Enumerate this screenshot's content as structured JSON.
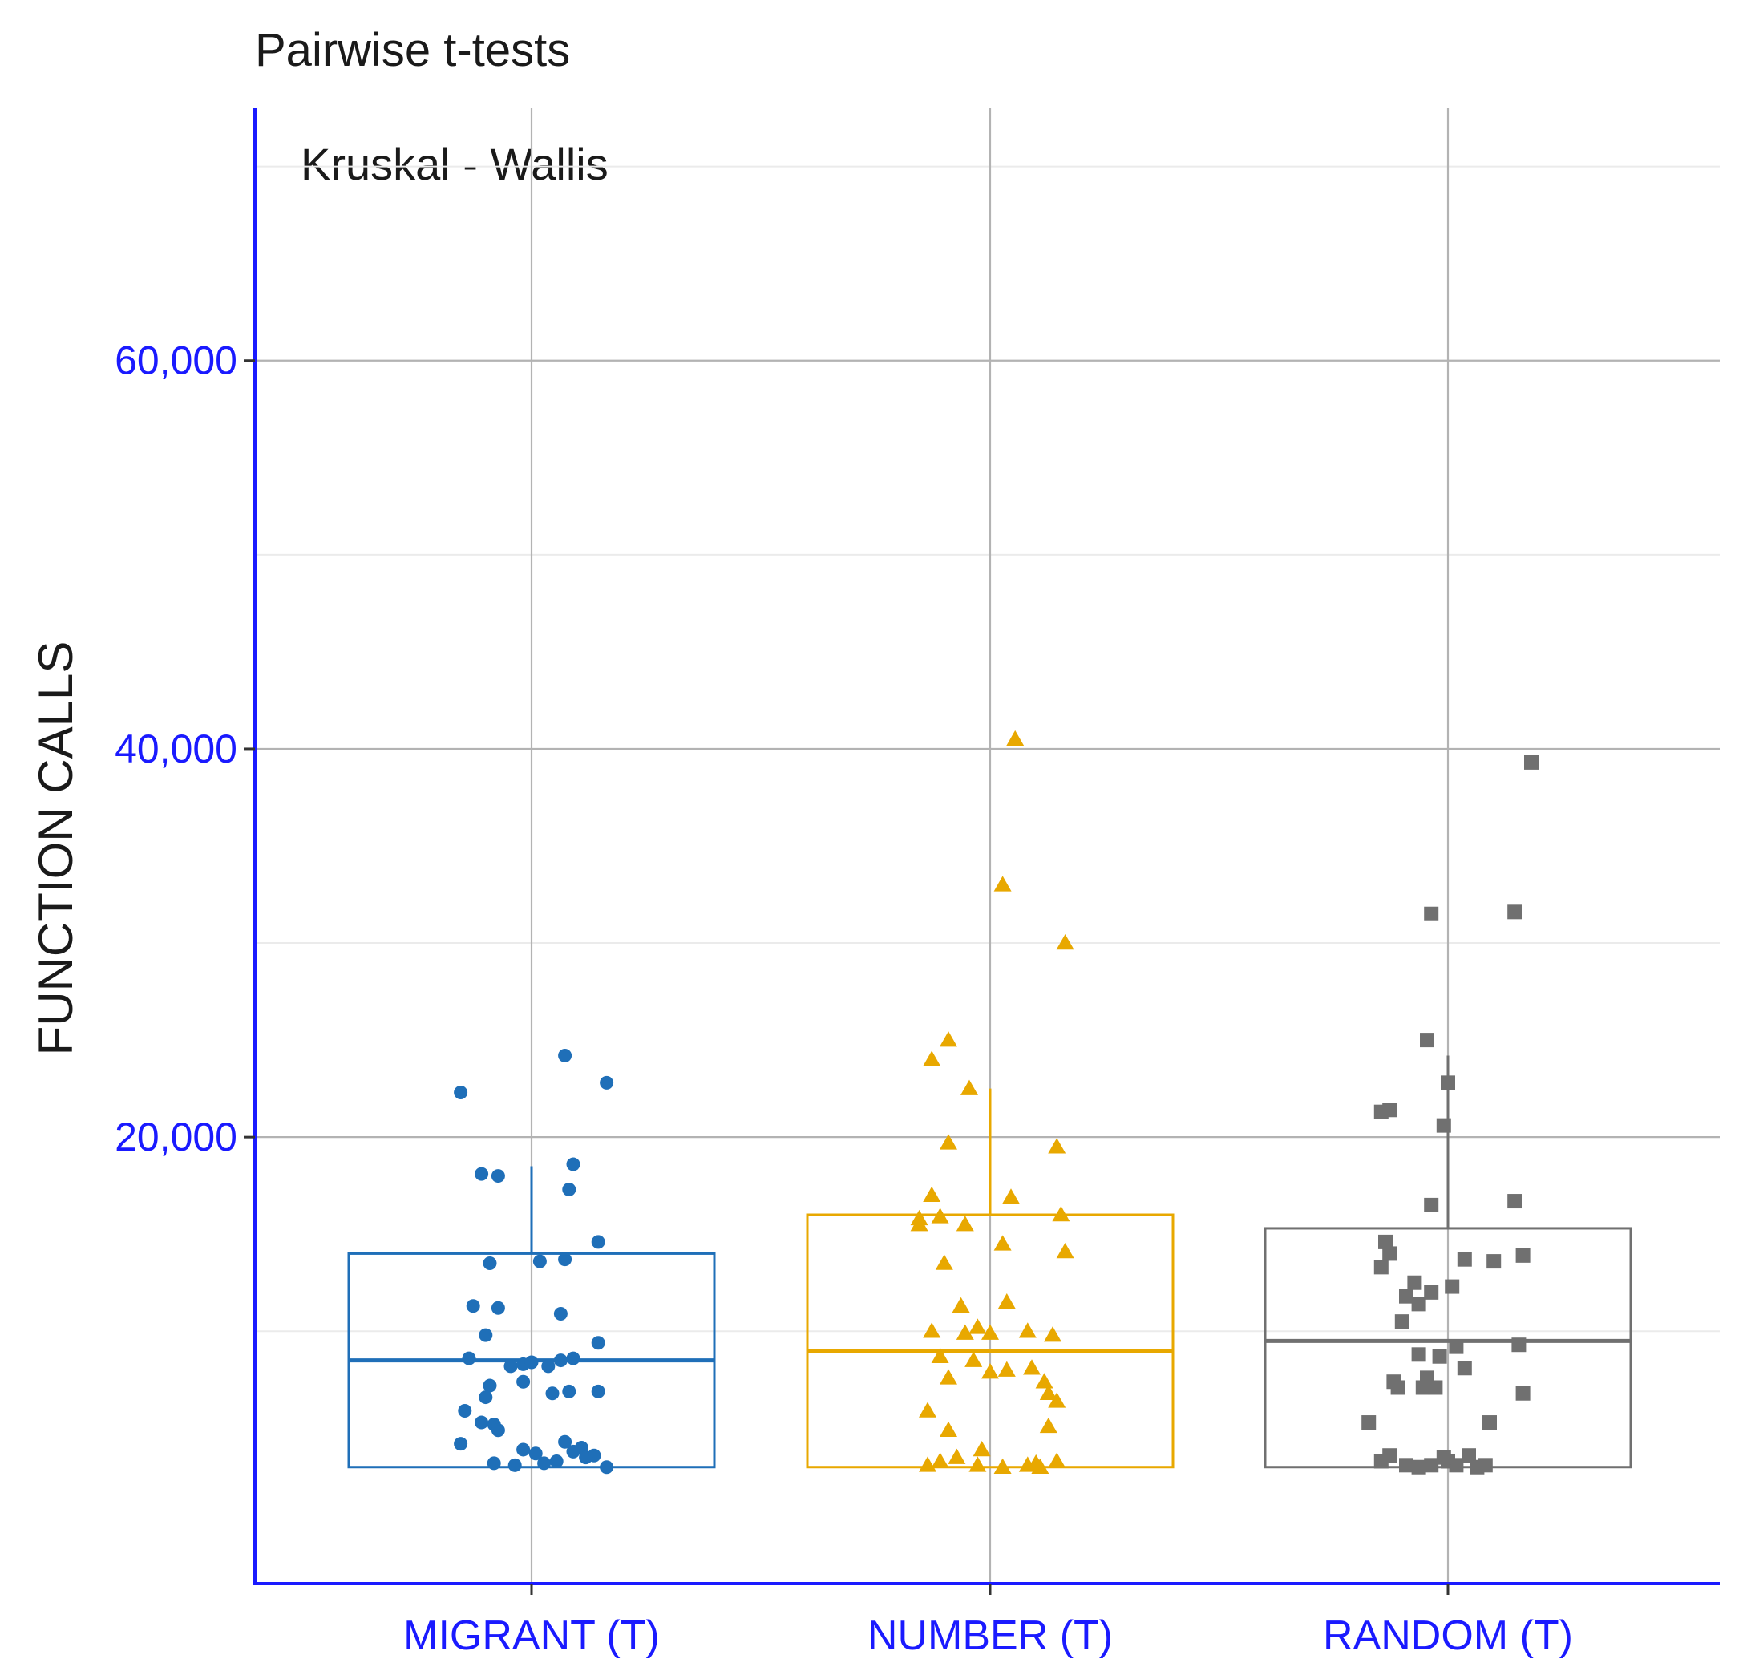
{
  "chart_data": {
    "type": "boxplot",
    "title": "Pairwise t-tests",
    "annotation": "Kruskal - Wallis",
    "xlabel": "",
    "ylabel": "FUNCTION CALLS",
    "ylim": [
      -3000,
      73000
    ],
    "y_ticks": [
      20000,
      40000,
      60000
    ],
    "y_tick_labels": [
      "20,000",
      "40,000",
      "60,000"
    ],
    "grid": true,
    "axis_color": "#1a1aff",
    "categories": [
      "MIGRANT (T)",
      "NUMBER (T)",
      "RANDOM (T)"
    ],
    "series": [
      {
        "name": "MIGRANT (T)",
        "color": "#1f6fb8",
        "marker": "circle",
        "box": {
          "q1": 3000,
          "median": 8500,
          "q3": 14000,
          "whisker_low": 3000,
          "whisker_high": 18500
        },
        "points": [
          [
            -0.17,
            22300
          ],
          [
            0.08,
            24200
          ],
          [
            0.18,
            22800
          ],
          [
            -0.12,
            18100
          ],
          [
            -0.08,
            18000
          ],
          [
            0.09,
            17300
          ],
          [
            0.1,
            18600
          ],
          [
            -0.1,
            13500
          ],
          [
            0.02,
            13600
          ],
          [
            0.08,
            13700
          ],
          [
            0.16,
            14600
          ],
          [
            -0.14,
            11300
          ],
          [
            -0.08,
            11200
          ],
          [
            0.07,
            10900
          ],
          [
            -0.11,
            9800
          ],
          [
            0.16,
            9400
          ],
          [
            -0.15,
            8600
          ],
          [
            -0.05,
            8200
          ],
          [
            -0.02,
            8300
          ],
          [
            0.0,
            8400
          ],
          [
            0.04,
            8200
          ],
          [
            0.07,
            8500
          ],
          [
            0.1,
            8600
          ],
          [
            -0.1,
            7200
          ],
          [
            -0.11,
            6600
          ],
          [
            -0.02,
            7400
          ],
          [
            0.05,
            6800
          ],
          [
            0.09,
            6900
          ],
          [
            0.16,
            6900
          ],
          [
            -0.16,
            5900
          ],
          [
            -0.12,
            5300
          ],
          [
            -0.09,
            5200
          ],
          [
            -0.08,
            4900
          ],
          [
            -0.17,
            4200
          ],
          [
            -0.02,
            3900
          ],
          [
            0.01,
            3700
          ],
          [
            0.08,
            4300
          ],
          [
            0.1,
            3800
          ],
          [
            0.12,
            4000
          ],
          [
            0.15,
            3600
          ],
          [
            -0.09,
            3200
          ],
          [
            -0.04,
            3100
          ],
          [
            0.03,
            3200
          ],
          [
            0.06,
            3300
          ],
          [
            0.13,
            3500
          ],
          [
            0.18,
            3000
          ]
        ]
      },
      {
        "name": "NUMBER (T)",
        "color": "#e8a800",
        "marker": "triangle",
        "box": {
          "q1": 3000,
          "median": 9000,
          "q3": 16000,
          "whisker_low": 3000,
          "whisker_high": 22500
        },
        "points": [
          [
            0.06,
            40500
          ],
          [
            0.03,
            33000
          ],
          [
            0.18,
            30000
          ],
          [
            -0.1,
            25000
          ],
          [
            -0.14,
            24000
          ],
          [
            -0.05,
            22500
          ],
          [
            -0.1,
            19700
          ],
          [
            0.16,
            19500
          ],
          [
            -0.14,
            17000
          ],
          [
            0.05,
            16900
          ],
          [
            -0.17,
            15800
          ],
          [
            -0.12,
            15900
          ],
          [
            0.17,
            16000
          ],
          [
            -0.17,
            15500
          ],
          [
            -0.06,
            15500
          ],
          [
            0.03,
            14500
          ],
          [
            0.18,
            14100
          ],
          [
            -0.11,
            13500
          ],
          [
            -0.07,
            11300
          ],
          [
            0.04,
            11500
          ],
          [
            -0.14,
            10000
          ],
          [
            -0.06,
            9900
          ],
          [
            -0.03,
            10200
          ],
          [
            0.0,
            9900
          ],
          [
            0.09,
            10000
          ],
          [
            0.15,
            9800
          ],
          [
            -0.12,
            8700
          ],
          [
            -0.04,
            8500
          ],
          [
            0.04,
            8000
          ],
          [
            0.1,
            8100
          ],
          [
            -0.1,
            7600
          ],
          [
            0.0,
            7900
          ],
          [
            0.13,
            7400
          ],
          [
            0.14,
            6800
          ],
          [
            0.16,
            6400
          ],
          [
            -0.15,
            5900
          ],
          [
            -0.1,
            4900
          ],
          [
            0.14,
            5100
          ],
          [
            -0.02,
            3900
          ],
          [
            -0.12,
            3300
          ],
          [
            -0.08,
            3500
          ],
          [
            -0.15,
            3100
          ],
          [
            0.09,
            3100
          ],
          [
            0.11,
            3200
          ],
          [
            0.16,
            3300
          ],
          [
            0.03,
            3000
          ],
          [
            0.12,
            3000
          ],
          [
            -0.03,
            3100
          ]
        ]
      },
      {
        "name": "RANDOM (T)",
        "color": "#707070",
        "marker": "square",
        "box": {
          "q1": 3000,
          "median": 9500,
          "q3": 15300,
          "whisker_low": 3000,
          "whisker_high": 24200
        },
        "points": [
          [
            0.2,
            39300
          ],
          [
            -0.04,
            31500
          ],
          [
            0.16,
            31600
          ],
          [
            -0.05,
            25000
          ],
          [
            0.0,
            22800
          ],
          [
            -0.16,
            21300
          ],
          [
            -0.14,
            21400
          ],
          [
            -0.01,
            20600
          ],
          [
            -0.04,
            16500
          ],
          [
            0.16,
            16700
          ],
          [
            -0.15,
            14600
          ],
          [
            -0.14,
            14000
          ],
          [
            0.04,
            13700
          ],
          [
            0.11,
            13600
          ],
          [
            0.18,
            13900
          ],
          [
            -0.16,
            13300
          ],
          [
            -0.08,
            12500
          ],
          [
            0.01,
            12300
          ],
          [
            -0.1,
            11800
          ],
          [
            -0.04,
            12000
          ],
          [
            -0.07,
            11400
          ],
          [
            -0.11,
            10500
          ],
          [
            -0.07,
            8800
          ],
          [
            0.02,
            9200
          ],
          [
            0.17,
            9300
          ],
          [
            -0.02,
            8700
          ],
          [
            0.04,
            8100
          ],
          [
            -0.13,
            7400
          ],
          [
            -0.12,
            7100
          ],
          [
            -0.06,
            7100
          ],
          [
            -0.05,
            7600
          ],
          [
            -0.03,
            7100
          ],
          [
            0.18,
            6800
          ],
          [
            -0.19,
            5300
          ],
          [
            0.1,
            5300
          ],
          [
            -0.16,
            3300
          ],
          [
            -0.1,
            3100
          ],
          [
            -0.07,
            3000
          ],
          [
            -0.04,
            3100
          ],
          [
            0.0,
            3300
          ],
          [
            0.02,
            3100
          ],
          [
            0.05,
            3600
          ],
          [
            0.09,
            3100
          ],
          [
            -0.14,
            3600
          ],
          [
            -0.01,
            3500
          ],
          [
            0.07,
            3000
          ]
        ]
      }
    ]
  }
}
